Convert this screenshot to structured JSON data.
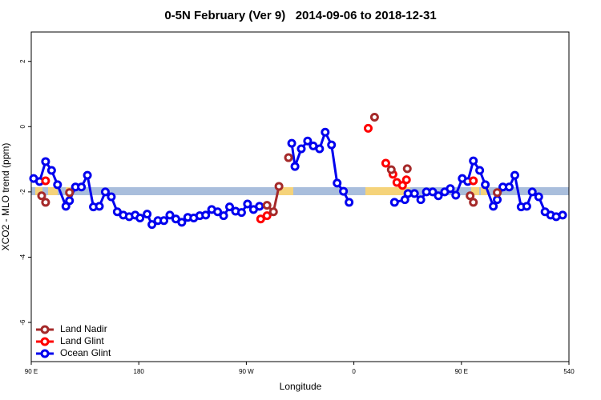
{
  "chart_data": {
    "type": "line",
    "title": "0-5N February (Ver 9)   2014-09-06 to 2018-12-31",
    "x_label": "Longitude",
    "y_label": "XCO2 - MLO trend (ppm)",
    "xlim": [
      90,
      540
    ],
    "ylim": [
      -7.2,
      2.9
    ],
    "xticks": [
      {
        "value": 90,
        "label": "90 E"
      },
      180,
      {
        "value": 270,
        "label": "90 W"
      },
      {
        "value": 360,
        "label": "0"
      },
      {
        "value": 450,
        "label": "90 E"
      },
      540
    ],
    "yticks": [
      -6,
      -4,
      -2,
      0,
      2
    ],
    "legend": "bottom-left",
    "series": [
      {
        "name": "Land Nadir",
        "color": "#a52a2a",
        "x": [
          98.7,
          null,
          102,
          null,
          122,
          null,
          287.3,
          292.7,
          297.3,
          null,
          305.3,
          null,
          377.3,
          null,
          391.3,
          null,
          404.7,
          null,
          457.3,
          null,
          460,
          null,
          480
        ],
        "values": [
          -2.12,
          null,
          -2.32,
          null,
          -2.02,
          null,
          -2.41,
          -2.61,
          -1.83,
          null,
          -0.95,
          null,
          0.29,
          null,
          -1.32,
          null,
          -1.29,
          null,
          -2.12,
          null,
          -2.32,
          null,
          -2.02
        ]
      },
      {
        "name": "Land Glint",
        "color": "#ff0000",
        "x": [
          102,
          null,
          282,
          287.3,
          null,
          372,
          null,
          386.7,
          null,
          392.7,
          null,
          396,
          400.7,
          404,
          null,
          460
        ],
        "values": [
          -1.66,
          null,
          -2.83,
          -2.73,
          null,
          -0.05,
          null,
          -1.12,
          null,
          -1.46,
          null,
          -1.71,
          -1.8,
          -1.63,
          null,
          -1.66
        ]
      },
      {
        "name": "Ocean Glint",
        "color": "#0000ee",
        "x": [
          92,
          97,
          102,
          107,
          112,
          119,
          122,
          127,
          132,
          137,
          142,
          147,
          152,
          157,
          162,
          167,
          172,
          177,
          181,
          187,
          191,
          196,
          201,
          206,
          211,
          216,
          221,
          226,
          231,
          236,
          241,
          246,
          251,
          256,
          261,
          266,
          271,
          276,
          281,
          null,
          308,
          310.7,
          316,
          321.3,
          326,
          331.3,
          336,
          341.3,
          346,
          351.3,
          356,
          null,
          394,
          402.7,
          405.3,
          410.7,
          416,
          420.7,
          426,
          430.7,
          436,
          440.7,
          445.3,
          450.7,
          455.3,
          460,
          465.3,
          470,
          476.7,
          480,
          484.7,
          490,
          494.7,
          500,
          504.7,
          509.3,
          514.7,
          520,
          524.7,
          529.3,
          534.7
        ],
        "values": [
          -1.59,
          -1.68,
          -1.07,
          -1.34,
          -1.78,
          -2.44,
          -2.27,
          -1.85,
          -1.85,
          -1.49,
          -2.46,
          -2.44,
          -2.0,
          -2.15,
          -2.61,
          -2.71,
          -2.76,
          -2.71,
          -2.8,
          -2.68,
          -3.0,
          -2.88,
          -2.88,
          -2.71,
          -2.83,
          -2.93,
          -2.78,
          -2.8,
          -2.73,
          -2.71,
          -2.54,
          -2.61,
          -2.73,
          -2.46,
          -2.59,
          -2.63,
          -2.37,
          -2.54,
          -2.44,
          null,
          -0.51,
          -1.22,
          -0.68,
          -0.44,
          -0.59,
          -0.68,
          -0.17,
          -0.56,
          -1.73,
          -1.98,
          -2.32,
          null,
          -2.32,
          -2.24,
          -2.05,
          -2.05,
          -2.24,
          -2.0,
          -2.0,
          -2.12,
          -2.0,
          -1.9,
          -2.1,
          -1.59,
          -1.68,
          -1.05,
          -1.34,
          -1.78,
          -2.44,
          -2.24,
          -1.85,
          -1.85,
          -1.49,
          -2.46,
          -2.44,
          -2.0,
          -2.15,
          -2.61,
          -2.71,
          -2.76,
          -2.71
        ]
      }
    ]
  }
}
